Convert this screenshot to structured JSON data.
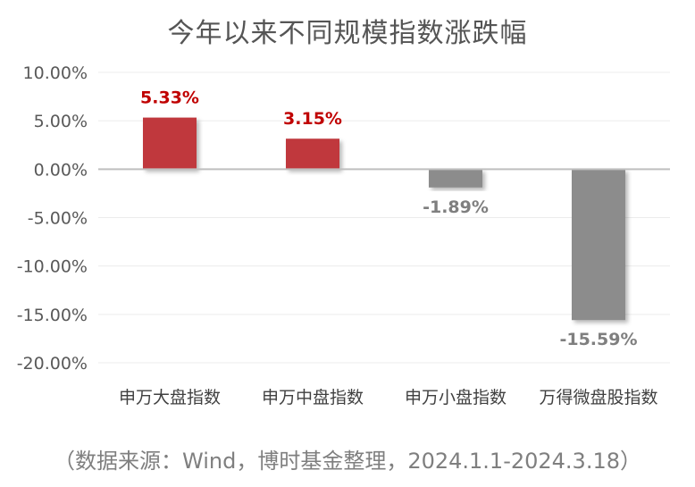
{
  "chart_data": {
    "type": "bar",
    "title": "今年以来不同规模指数涨跌幅",
    "categories": [
      "申万大盘指数",
      "申万中盘指数",
      "申万小盘指数",
      "万得微盘股指数"
    ],
    "values": [
      5.33,
      3.15,
      -1.89,
      -15.59
    ],
    "value_labels": [
      "5.33%",
      "3.15%",
      "-1.89%",
      "-15.59%"
    ],
    "y_ticks": [
      10,
      5,
      0,
      -5,
      -10,
      -15,
      -20
    ],
    "y_tick_labels": [
      "10.00%",
      "5.00%",
      "0.00%",
      "-5.00%",
      "-10.00%",
      "-15.00%",
      "-20.00%"
    ],
    "ylim": [
      -20,
      10
    ],
    "grid": true,
    "legend": "none",
    "colors": {
      "positive": "#c0383c",
      "negative": "#8c8c8c",
      "positive_label": "#c00000",
      "negative_label": "#7f7f7f",
      "axis": "#bfbfbf",
      "grid": "#ececec",
      "tick_text": "#595959"
    }
  },
  "source": "（数据来源：Wind，博时基金整理，2024.1.1-2024.3.18）"
}
